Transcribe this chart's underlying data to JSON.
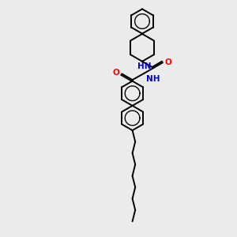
{
  "bg_color": "#ebebeb",
  "line_color": "#000000",
  "o_color": "#ff0000",
  "n_color": "#0000cd",
  "line_width": 1.4,
  "figsize": [
    3.0,
    3.0
  ],
  "dpi": 100,
  "xlim": [
    0,
    10
  ],
  "ylim": [
    0,
    10
  ]
}
